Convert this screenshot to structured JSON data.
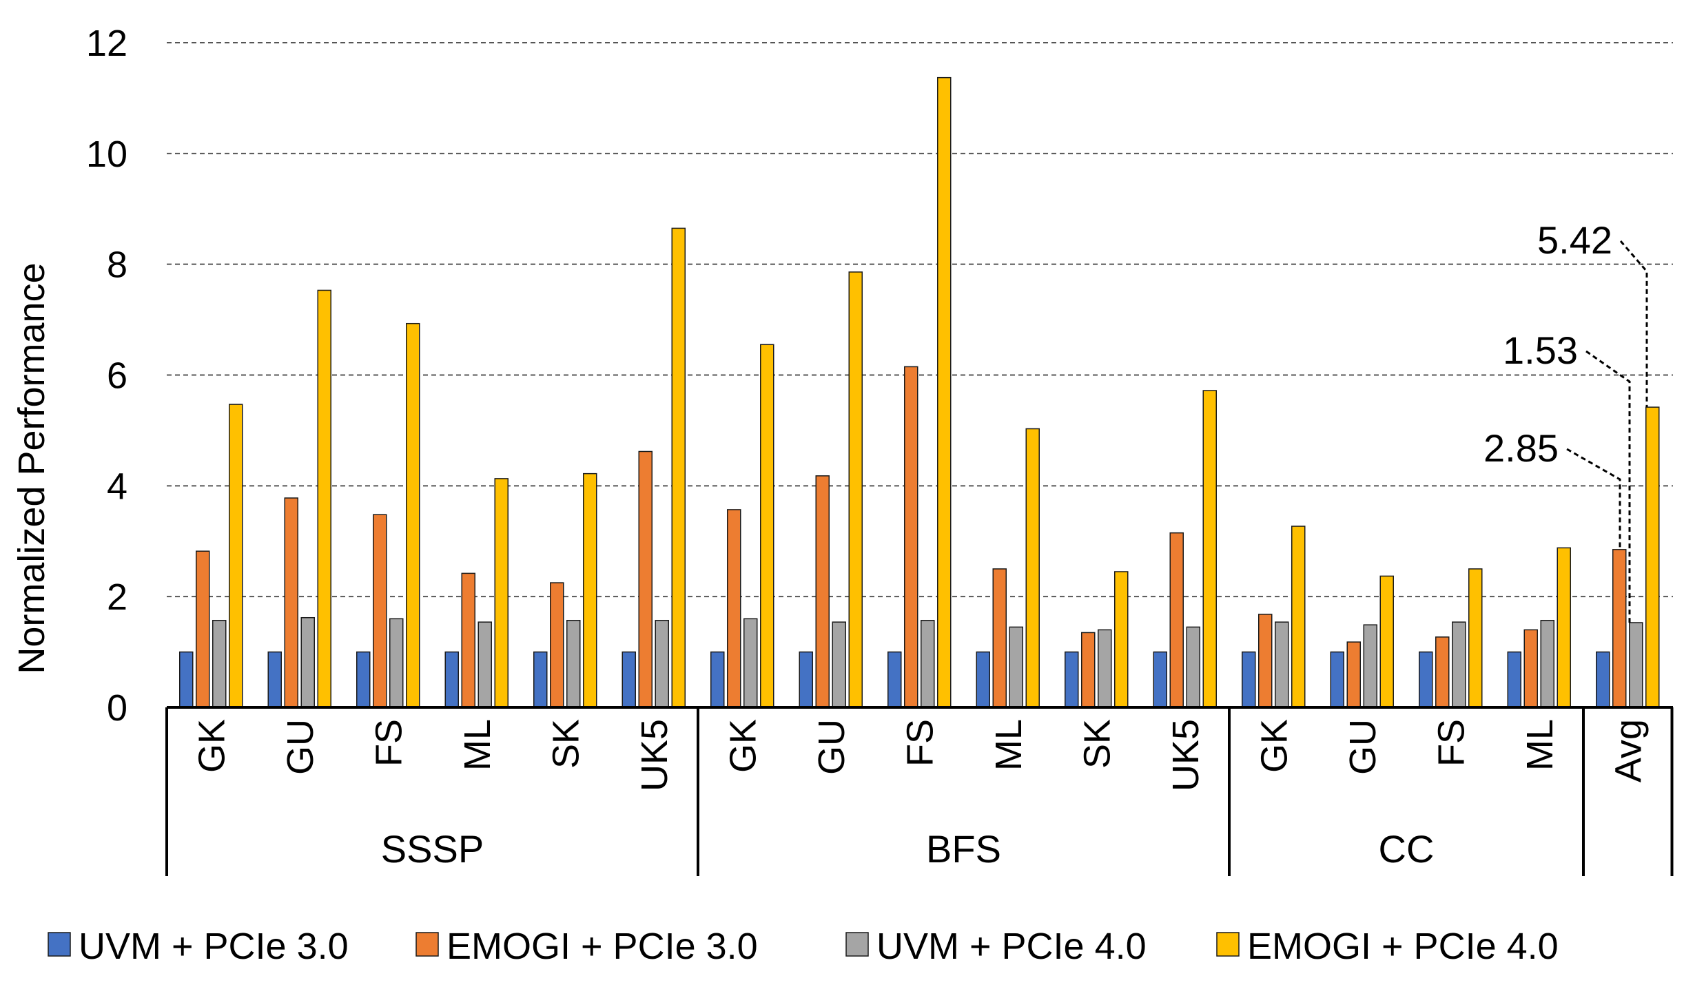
{
  "chart_data": {
    "type": "bar",
    "ylabel": "Normalized Performance",
    "xlabel": "",
    "ylim": [
      0,
      12
    ],
    "yticks": [
      "0",
      "2",
      "4",
      "6",
      "8",
      "10",
      "12"
    ],
    "grid": "horizontal dashed",
    "legend_position": "bottom",
    "groups": [
      {
        "name": "SSSP",
        "categories": [
          "GK",
          "GU",
          "FS",
          "ML",
          "SK",
          "UK5"
        ]
      },
      {
        "name": "BFS",
        "categories": [
          "GK",
          "GU",
          "FS",
          "ML",
          "SK",
          "UK5"
        ]
      },
      {
        "name": "CC",
        "categories": [
          "GK",
          "GU",
          "FS",
          "ML"
        ]
      },
      {
        "name": "",
        "categories": [
          "Avg"
        ]
      }
    ],
    "series": [
      {
        "name": "UVM + PCIe 3.0",
        "color": "#4472C4",
        "values": [
          1,
          1,
          1,
          1,
          1,
          1,
          1,
          1,
          1,
          1,
          1,
          1,
          1,
          1,
          1,
          1,
          1
        ]
      },
      {
        "name": "EMOGI + PCIe 3.0",
        "color": "#ED7D31",
        "values": [
          2.82,
          3.78,
          3.48,
          2.42,
          2.25,
          4.62,
          3.57,
          4.18,
          6.15,
          2.5,
          1.35,
          3.15,
          1.68,
          1.18,
          1.27,
          1.4,
          2.85
        ]
      },
      {
        "name": "UVM + PCIe 4.0",
        "color": "#A5A5A5",
        "values": [
          1.57,
          1.62,
          1.6,
          1.54,
          1.57,
          1.57,
          1.6,
          1.54,
          1.57,
          1.45,
          1.4,
          1.45,
          1.54,
          1.49,
          1.54,
          1.57,
          1.53
        ]
      },
      {
        "name": "EMOGI + PCIe 4.0",
        "color": "#FFC000",
        "values": [
          5.47,
          7.53,
          6.93,
          4.13,
          4.22,
          8.65,
          6.55,
          7.86,
          11.37,
          5.03,
          2.45,
          5.72,
          3.27,
          2.37,
          2.5,
          2.88,
          5.42
        ]
      }
    ],
    "annotations": [
      {
        "text": "5.42",
        "series": 3,
        "category_index": 16
      },
      {
        "text": "1.53",
        "series": 2,
        "category_index": 16
      },
      {
        "text": "2.85",
        "series": 1,
        "category_index": 16
      }
    ]
  }
}
